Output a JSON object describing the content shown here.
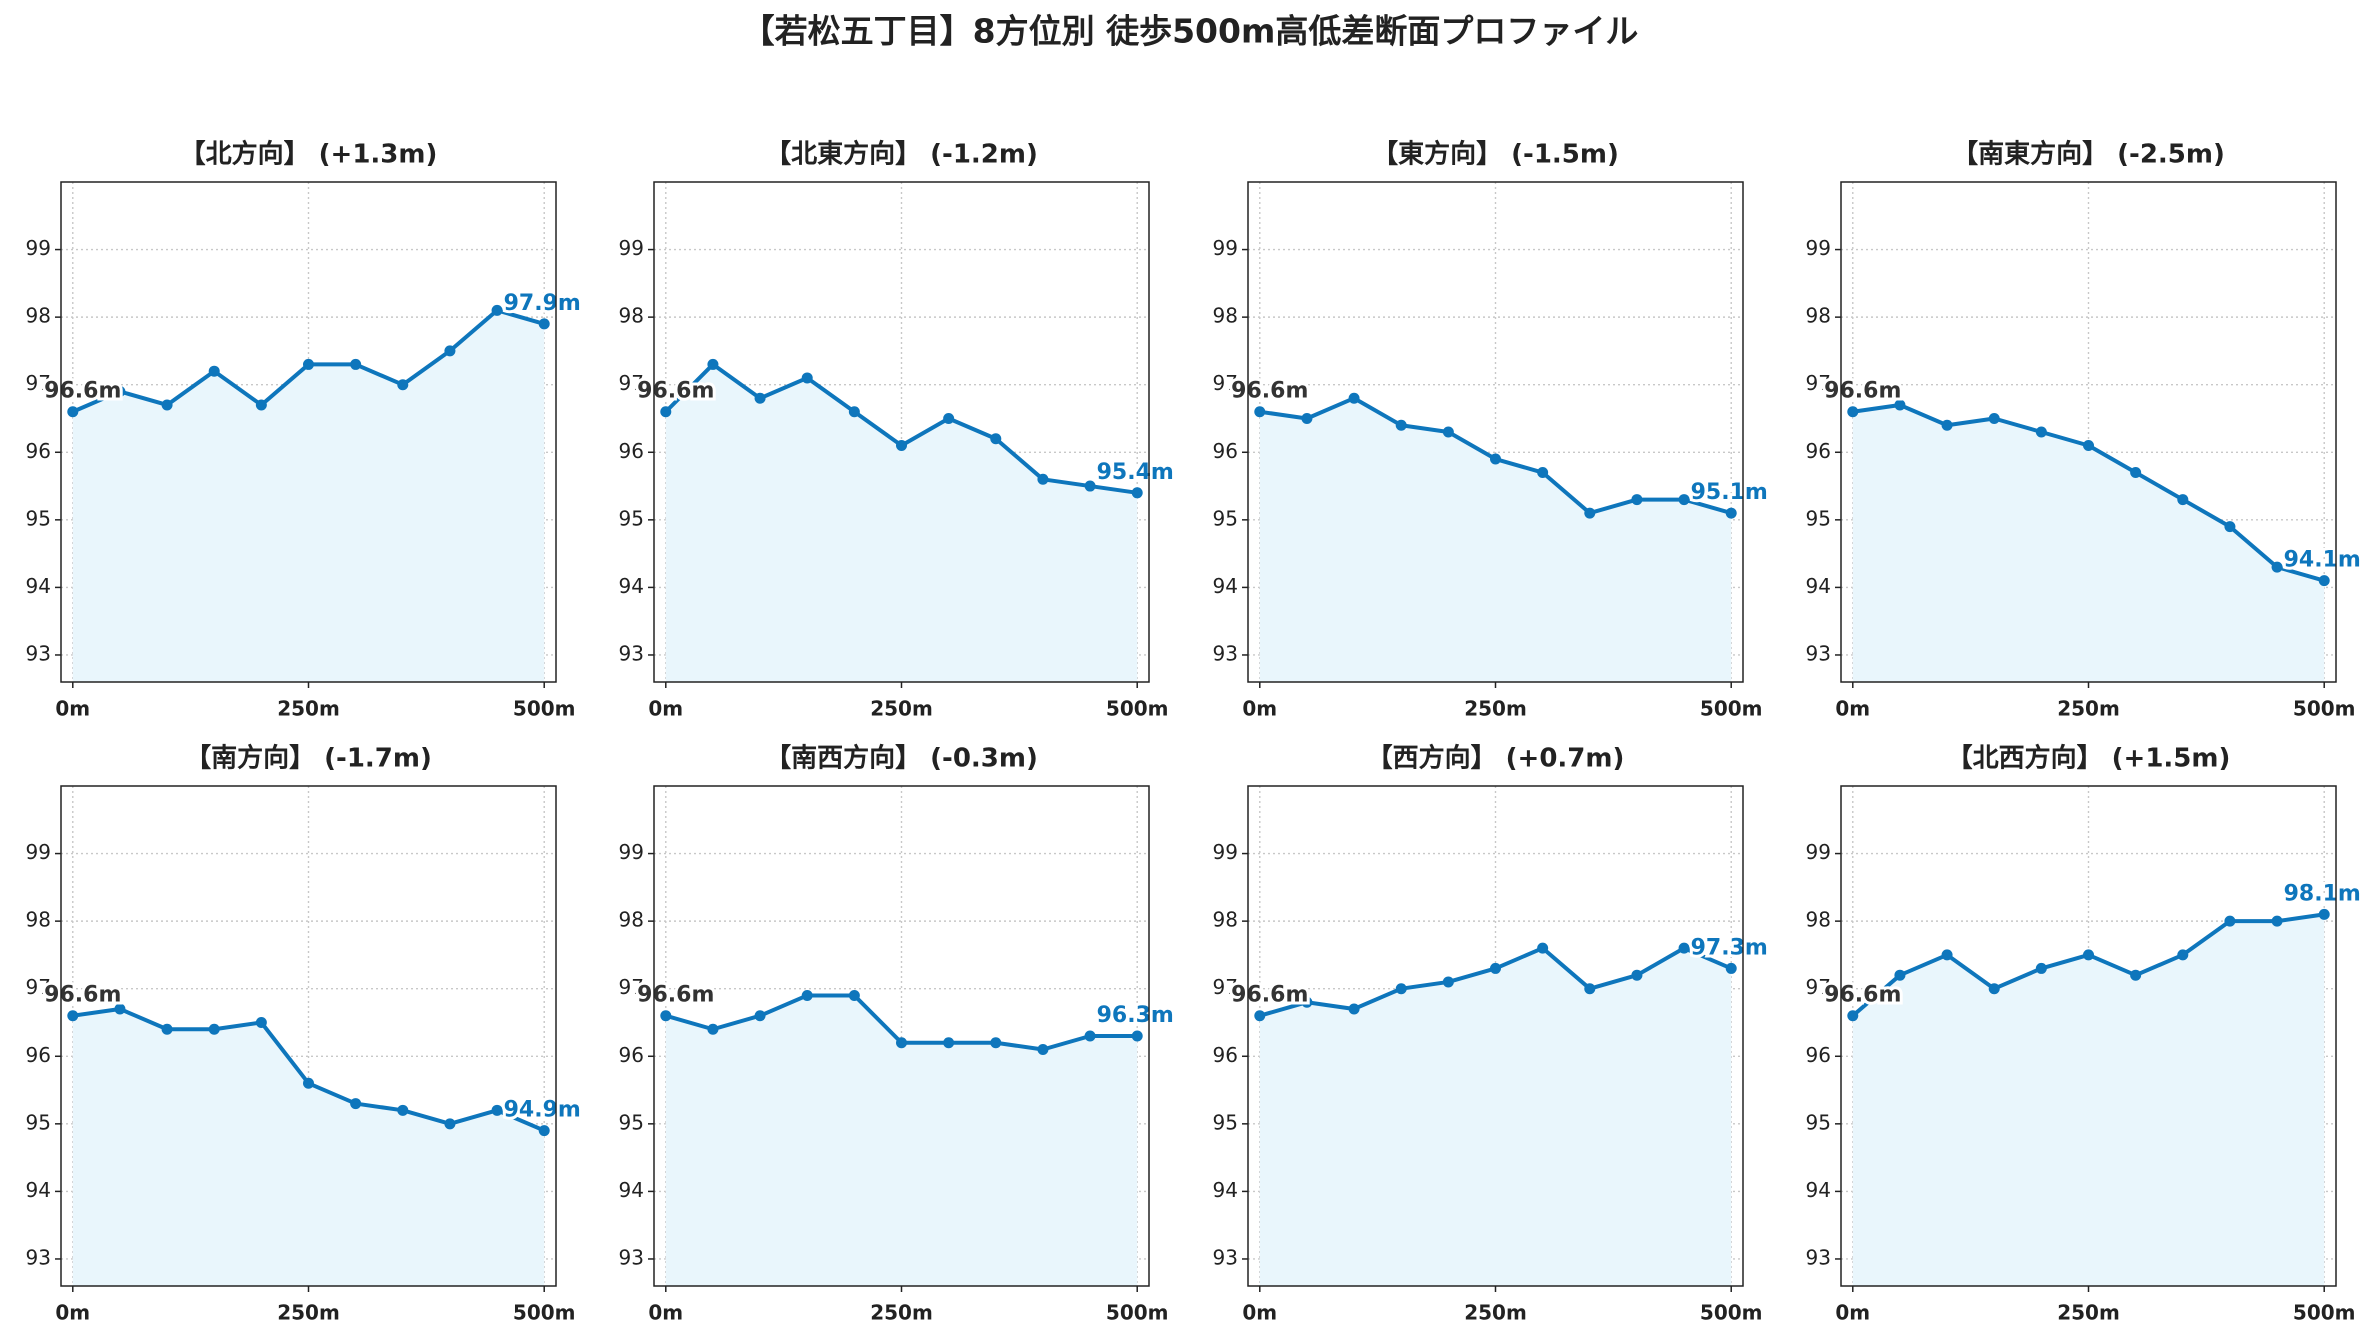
{
  "title": "【若松五丁目】8方位別 徒歩500m高低差断面プロファイル",
  "chart_data": [
    {
      "type": "line",
      "title": "【北方向】 (+1.3m)",
      "x": [
        0,
        50,
        100,
        150,
        200,
        250,
        300,
        350,
        400,
        450,
        500
      ],
      "values": [
        96.6,
        96.9,
        96.7,
        97.2,
        96.7,
        97.3,
        97.3,
        97.0,
        97.5,
        98.1,
        97.9
      ],
      "value_labels": [
        "96.6m",
        null,
        null,
        null,
        null,
        null,
        null,
        null,
        null,
        null,
        "97.9m"
      ],
      "color": "#0e76bc",
      "fill": "#e9f6fc",
      "xlim": [
        -12.5,
        512.5
      ],
      "ylim": [
        92.6,
        100.0
      ],
      "xticks": [
        {
          "value": 0,
          "label": "0m"
        },
        {
          "value": 250,
          "label": "250m"
        },
        {
          "value": 500,
          "label": "500m"
        }
      ],
      "yticks": [
        93,
        94,
        95,
        96,
        97,
        98,
        99
      ],
      "grid": true
    },
    {
      "type": "line",
      "title": "【北東方向】 (-1.2m)",
      "x": [
        0,
        50,
        100,
        150,
        200,
        250,
        300,
        350,
        400,
        450,
        500
      ],
      "values": [
        96.6,
        97.3,
        96.8,
        97.1,
        96.6,
        96.1,
        96.5,
        96.2,
        95.6,
        95.5,
        95.4
      ],
      "value_labels": [
        "96.6m",
        null,
        null,
        null,
        null,
        null,
        null,
        null,
        null,
        null,
        "95.4m"
      ],
      "color": "#0e76bc",
      "fill": "#e9f6fc",
      "xlim": [
        -12.5,
        512.5
      ],
      "ylim": [
        92.6,
        100.0
      ],
      "xticks": [
        {
          "value": 0,
          "label": "0m"
        },
        {
          "value": 250,
          "label": "250m"
        },
        {
          "value": 500,
          "label": "500m"
        }
      ],
      "yticks": [
        93,
        94,
        95,
        96,
        97,
        98,
        99
      ],
      "grid": true
    },
    {
      "type": "line",
      "title": "【東方向】 (-1.5m)",
      "x": [
        0,
        50,
        100,
        150,
        200,
        250,
        300,
        350,
        400,
        450,
        500
      ],
      "values": [
        96.6,
        96.5,
        96.8,
        96.4,
        96.3,
        95.9,
        95.7,
        95.1,
        95.3,
        95.3,
        95.1
      ],
      "value_labels": [
        "96.6m",
        null,
        null,
        null,
        null,
        null,
        null,
        null,
        null,
        null,
        "95.1m"
      ],
      "color": "#0e76bc",
      "fill": "#e9f6fc",
      "xlim": [
        -12.5,
        512.5
      ],
      "ylim": [
        92.6,
        100.0
      ],
      "xticks": [
        {
          "value": 0,
          "label": "0m"
        },
        {
          "value": 250,
          "label": "250m"
        },
        {
          "value": 500,
          "label": "500m"
        }
      ],
      "yticks": [
        93,
        94,
        95,
        96,
        97,
        98,
        99
      ],
      "grid": true
    },
    {
      "type": "line",
      "title": "【南東方向】 (-2.5m)",
      "x": [
        0,
        50,
        100,
        150,
        200,
        250,
        300,
        350,
        400,
        450,
        500
      ],
      "values": [
        96.6,
        96.7,
        96.4,
        96.5,
        96.3,
        96.1,
        95.7,
        95.3,
        94.9,
        94.3,
        94.1
      ],
      "value_labels": [
        "96.6m",
        null,
        null,
        null,
        null,
        null,
        null,
        null,
        null,
        null,
        "94.1m"
      ],
      "color": "#0e76bc",
      "fill": "#e9f6fc",
      "xlim": [
        -12.5,
        512.5
      ],
      "ylim": [
        92.6,
        100.0
      ],
      "xticks": [
        {
          "value": 0,
          "label": "0m"
        },
        {
          "value": 250,
          "label": "250m"
        },
        {
          "value": 500,
          "label": "500m"
        }
      ],
      "yticks": [
        93,
        94,
        95,
        96,
        97,
        98,
        99
      ],
      "grid": true
    },
    {
      "type": "line",
      "title": "【南方向】 (-1.7m)",
      "x": [
        0,
        50,
        100,
        150,
        200,
        250,
        300,
        350,
        400,
        450,
        500
      ],
      "values": [
        96.6,
        96.7,
        96.4,
        96.4,
        96.5,
        95.6,
        95.3,
        95.2,
        95.0,
        95.2,
        94.9
      ],
      "value_labels": [
        "96.6m",
        null,
        null,
        null,
        null,
        null,
        null,
        null,
        null,
        null,
        "94.9m"
      ],
      "color": "#0e76bc",
      "fill": "#e9f6fc",
      "xlim": [
        -12.5,
        512.5
      ],
      "ylim": [
        92.6,
        100.0
      ],
      "xticks": [
        {
          "value": 0,
          "label": "0m"
        },
        {
          "value": 250,
          "label": "250m"
        },
        {
          "value": 500,
          "label": "500m"
        }
      ],
      "yticks": [
        93,
        94,
        95,
        96,
        97,
        98,
        99
      ],
      "grid": true
    },
    {
      "type": "line",
      "title": "【南西方向】 (-0.3m)",
      "x": [
        0,
        50,
        100,
        150,
        200,
        250,
        300,
        350,
        400,
        450,
        500
      ],
      "values": [
        96.6,
        96.4,
        96.6,
        96.9,
        96.9,
        96.2,
        96.2,
        96.2,
        96.1,
        96.3,
        96.3
      ],
      "value_labels": [
        "96.6m",
        null,
        null,
        null,
        null,
        null,
        null,
        null,
        null,
        null,
        "96.3m"
      ],
      "color": "#0e76bc",
      "fill": "#e9f6fc",
      "xlim": [
        -12.5,
        512.5
      ],
      "ylim": [
        92.6,
        100.0
      ],
      "xticks": [
        {
          "value": 0,
          "label": "0m"
        },
        {
          "value": 250,
          "label": "250m"
        },
        {
          "value": 500,
          "label": "500m"
        }
      ],
      "yticks": [
        93,
        94,
        95,
        96,
        97,
        98,
        99
      ],
      "grid": true
    },
    {
      "type": "line",
      "title": "【西方向】 (+0.7m)",
      "x": [
        0,
        50,
        100,
        150,
        200,
        250,
        300,
        350,
        400,
        450,
        500
      ],
      "values": [
        96.6,
        96.8,
        96.7,
        97.0,
        97.1,
        97.3,
        97.6,
        97.0,
        97.2,
        97.6,
        97.3
      ],
      "value_labels": [
        "96.6m",
        null,
        null,
        null,
        null,
        null,
        null,
        null,
        null,
        null,
        "97.3m"
      ],
      "color": "#0e76bc",
      "fill": "#e9f6fc",
      "xlim": [
        -12.5,
        512.5
      ],
      "ylim": [
        92.6,
        100.0
      ],
      "xticks": [
        {
          "value": 0,
          "label": "0m"
        },
        {
          "value": 250,
          "label": "250m"
        },
        {
          "value": 500,
          "label": "500m"
        }
      ],
      "yticks": [
        93,
        94,
        95,
        96,
        97,
        98,
        99
      ],
      "grid": true
    },
    {
      "type": "line",
      "title": "【北西方向】 (+1.5m)",
      "x": [
        0,
        50,
        100,
        150,
        200,
        250,
        300,
        350,
        400,
        450,
        500
      ],
      "values": [
        96.6,
        97.2,
        97.5,
        97.0,
        97.3,
        97.5,
        97.2,
        97.5,
        98.0,
        98.0,
        98.1
      ],
      "value_labels": [
        "96.6m",
        null,
        null,
        null,
        null,
        null,
        null,
        null,
        null,
        null,
        "98.1m"
      ],
      "color": "#0e76bc",
      "fill": "#e9f6fc",
      "xlim": [
        -12.5,
        512.5
      ],
      "ylim": [
        92.6,
        100.0
      ],
      "xticks": [
        {
          "value": 0,
          "label": "0m"
        },
        {
          "value": 250,
          "label": "250m"
        },
        {
          "value": 500,
          "label": "500m"
        }
      ],
      "yticks": [
        93,
        94,
        95,
        96,
        97,
        98,
        99
      ],
      "grid": true
    }
  ]
}
